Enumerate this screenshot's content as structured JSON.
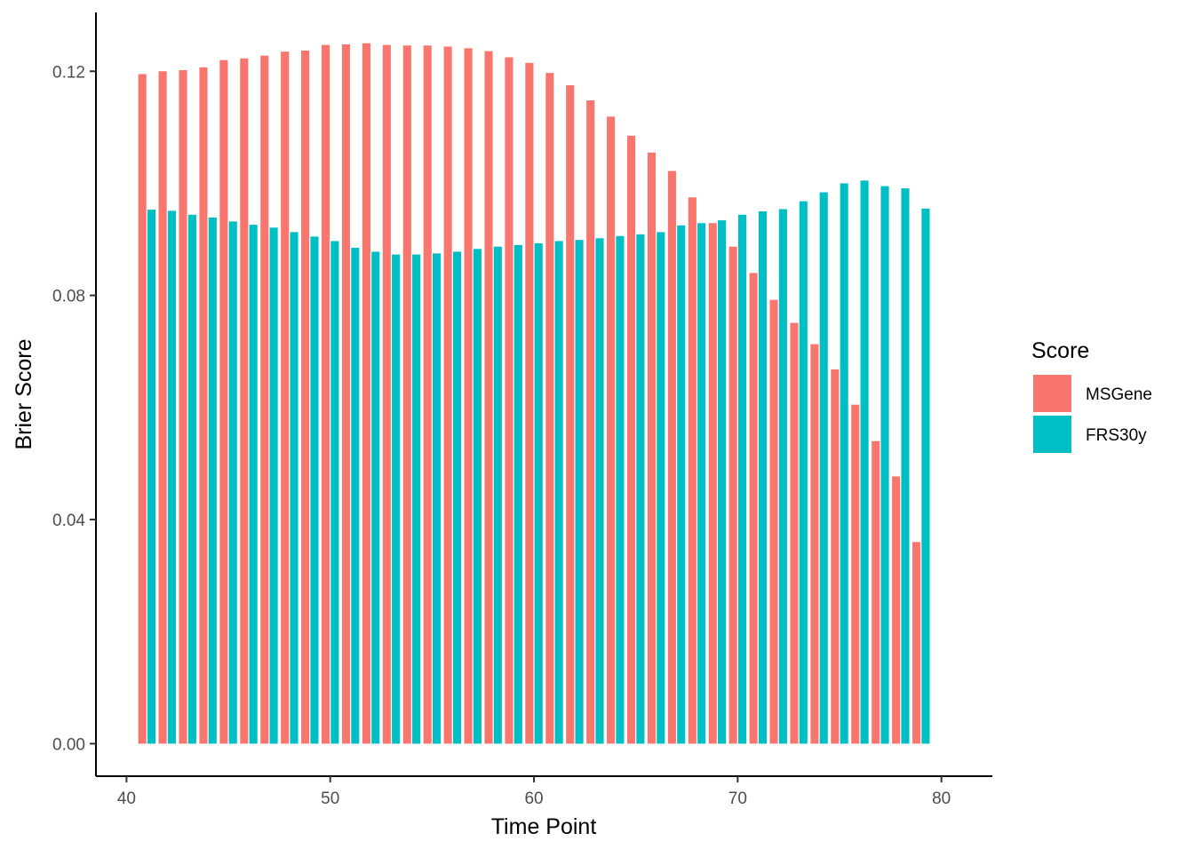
{
  "chart_data": {
    "type": "bar",
    "title": "",
    "xlabel": "Time Point",
    "ylabel": "Brier Score",
    "xlim": [
      38.5,
      82.5
    ],
    "ylim": [
      -0.0058,
      0.1305
    ],
    "x_ticks": [
      "40",
      "50",
      "60",
      "70",
      "80"
    ],
    "y_ticks": [
      "0.00",
      "0.04",
      "0.08",
      "0.12"
    ],
    "grid": false,
    "legend": {
      "title": "Score",
      "position": "right"
    },
    "x": [
      41,
      42,
      43,
      44,
      45,
      46,
      47,
      48,
      49,
      50,
      51,
      52,
      53,
      54,
      55,
      56,
      57,
      58,
      59,
      60,
      61,
      62,
      63,
      64,
      65,
      66,
      67,
      68,
      69,
      70,
      71,
      72,
      73,
      74,
      75,
      76,
      77,
      78,
      79
    ],
    "series": [
      {
        "name": "MSGene",
        "color": "#F8766D",
        "values": [
          0.1195,
          0.12,
          0.1202,
          0.1207,
          0.122,
          0.1223,
          0.1228,
          0.1235,
          0.1237,
          0.1247,
          0.1248,
          0.125,
          0.1247,
          0.1246,
          0.1246,
          0.1244,
          0.1241,
          0.1236,
          0.1225,
          0.1215,
          0.1197,
          0.1175,
          0.1148,
          0.1119,
          0.1085,
          0.1055,
          0.1022,
          0.0975,
          0.0929,
          0.0887,
          0.084,
          0.0792,
          0.0751,
          0.0713,
          0.0668,
          0.0605,
          0.054,
          0.0477,
          0.036
        ]
      },
      {
        "name": "FRS30y",
        "color": "#00BFC4",
        "values": [
          0.0953,
          0.0951,
          0.0944,
          0.0939,
          0.0932,
          0.0926,
          0.0921,
          0.0913,
          0.0905,
          0.0897,
          0.0885,
          0.0878,
          0.0873,
          0.0873,
          0.0875,
          0.0878,
          0.0883,
          0.0887,
          0.089,
          0.0893,
          0.0897,
          0.0899,
          0.0902,
          0.0906,
          0.0909,
          0.0913,
          0.0925,
          0.0929,
          0.0934,
          0.0944,
          0.095,
          0.0954,
          0.0968,
          0.0984,
          0.1,
          0.1005,
          0.0995,
          0.0991,
          0.0955
        ]
      }
    ]
  }
}
